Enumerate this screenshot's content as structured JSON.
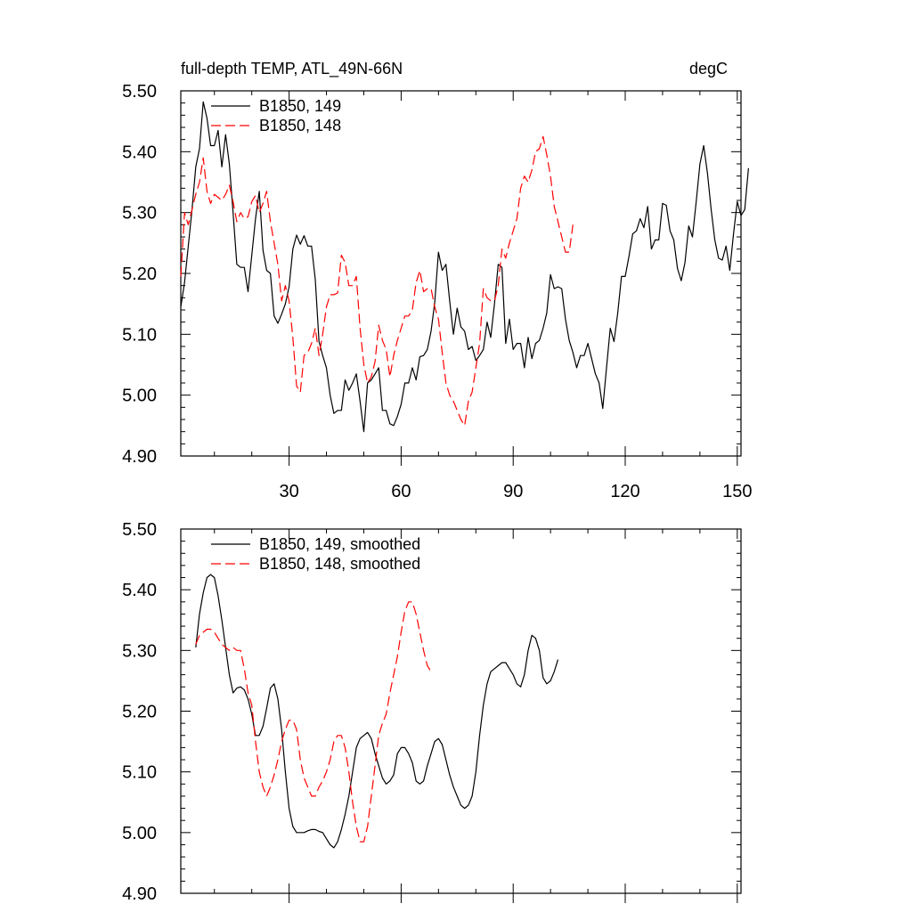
{
  "chart_data": [
    {
      "type": "line",
      "title": "full-depth TEMP, ATL_49N-66N",
      "units": "degC",
      "xlabel": "",
      "ylabel": "",
      "xlim": [
        1,
        151
      ],
      "ylim": [
        4.9,
        5.5
      ],
      "xticks": [
        "30",
        "60",
        "90",
        "120",
        "150"
      ],
      "yticks": [
        "5.50",
        "5.40",
        "5.30",
        "5.20",
        "5.10",
        "5.00",
        "4.90"
      ],
      "legend_position": "top-left",
      "series": [
        {
          "name": "B1850, 149",
          "color": "#000000",
          "dash": "solid",
          "x_start": 1,
          "values": [
            5.145,
            5.185,
            5.245,
            5.305,
            5.375,
            5.405,
            5.482,
            5.455,
            5.41,
            5.41,
            5.435,
            5.375,
            5.428,
            5.38,
            5.3,
            5.215,
            5.21,
            5.21,
            5.17,
            5.23,
            5.29,
            5.335,
            5.238,
            5.205,
            5.2,
            5.13,
            5.118,
            5.133,
            5.15,
            5.178,
            5.24,
            5.263,
            5.248,
            5.262,
            5.245,
            5.245,
            5.19,
            5.088,
            5.065,
            5.045,
            5.0,
            4.97,
            4.975,
            4.975,
            5.025,
            5.008,
            5.02,
            5.035,
            4.99,
            4.94,
            5.02,
            5.025,
            5.035,
            5.045,
            4.975,
            4.975,
            4.953,
            4.95,
            4.965,
            4.985,
            5.02,
            5.02,
            5.045,
            5.025,
            5.063,
            5.065,
            5.075,
            5.105,
            5.152,
            5.235,
            5.205,
            5.215,
            5.155,
            5.1,
            5.143,
            5.112,
            5.105,
            5.075,
            5.08,
            5.057,
            5.065,
            5.075,
            5.12,
            5.095,
            5.15,
            5.215,
            5.21,
            5.085,
            5.125,
            5.075,
            5.085,
            5.085,
            5.045,
            5.095,
            5.06,
            5.085,
            5.09,
            5.11,
            5.135,
            5.198,
            5.175,
            5.178,
            5.175,
            5.125,
            5.09,
            5.07,
            5.045,
            5.065,
            5.065,
            5.085,
            5.06,
            5.035,
            5.02,
            4.978,
            5.045,
            5.11,
            5.088,
            5.135,
            5.195,
            5.195,
            5.228,
            5.265,
            5.27,
            5.29,
            5.275,
            5.31,
            5.24,
            5.255,
            5.255,
            5.315,
            5.312,
            5.27,
            5.255,
            5.208,
            5.188,
            5.218,
            5.278,
            5.26,
            5.318,
            5.38,
            5.41,
            5.365,
            5.305,
            5.255,
            5.225,
            5.222,
            5.245,
            5.205,
            5.265,
            5.318,
            5.295,
            5.305,
            5.373
          ]
        },
        {
          "name": "B1850, 148",
          "color": "#ff0000",
          "dash": "dashed",
          "x_start": 1,
          "values": [
            5.195,
            5.3,
            5.28,
            5.305,
            5.33,
            5.35,
            5.39,
            5.335,
            5.315,
            5.33,
            5.325,
            5.32,
            5.33,
            5.345,
            5.318,
            5.285,
            5.3,
            5.29,
            5.293,
            5.318,
            5.328,
            5.3,
            5.315,
            5.335,
            5.285,
            5.25,
            5.215,
            5.155,
            5.18,
            5.155,
            5.095,
            5.015,
            5.005,
            5.065,
            5.07,
            5.085,
            5.11,
            5.065,
            5.1,
            5.145,
            5.165,
            5.165,
            5.168,
            5.23,
            5.218,
            5.18,
            5.18,
            5.195,
            5.11,
            5.05,
            5.02,
            5.03,
            5.055,
            5.115,
            5.09,
            5.075,
            5.03,
            5.065,
            5.09,
            5.11,
            5.13,
            5.13,
            5.14,
            5.185,
            5.205,
            5.17,
            5.175,
            5.175,
            5.145,
            5.125,
            5.07,
            5.02,
            5.0,
            4.99,
            4.975,
            4.96,
            4.95,
            4.99,
            5.005,
            5.045,
            5.085,
            5.175,
            5.16,
            5.155,
            5.155,
            5.18,
            5.24,
            5.225,
            5.25,
            5.27,
            5.29,
            5.34,
            5.36,
            5.35,
            5.37,
            5.4,
            5.405,
            5.425,
            5.395,
            5.36,
            5.31,
            5.285,
            5.26,
            5.235,
            5.235,
            5.28
          ]
        }
      ]
    },
    {
      "type": "line",
      "title": "",
      "xlabel": "",
      "ylabel": "",
      "xlim": [
        1,
        151
      ],
      "ylim": [
        4.9,
        5.5
      ],
      "yticks": [
        "5.50",
        "5.40",
        "5.30",
        "5.20",
        "5.10",
        "5.00",
        "4.90"
      ],
      "legend_position": "top-left",
      "series": [
        {
          "name": "B1850, 149, smoothed",
          "color": "#000000",
          "dash": "solid",
          "x_start": 5,
          "values": [
            5.305,
            5.36,
            5.395,
            5.42,
            5.425,
            5.42,
            5.39,
            5.35,
            5.305,
            5.26,
            5.23,
            5.238,
            5.24,
            5.235,
            5.22,
            5.195,
            5.16,
            5.16,
            5.175,
            5.205,
            5.238,
            5.245,
            5.22,
            5.17,
            5.1,
            5.04,
            5.01,
            5.0,
            5.0,
            5.0,
            5.003,
            5.005,
            5.005,
            5.002,
            5.0,
            4.99,
            4.98,
            4.975,
            4.985,
            5.005,
            5.03,
            5.06,
            5.1,
            5.14,
            5.155,
            5.16,
            5.165,
            5.155,
            5.13,
            5.11,
            5.09,
            5.08,
            5.085,
            5.095,
            5.13,
            5.14,
            5.14,
            5.13,
            5.115,
            5.085,
            5.08,
            5.085,
            5.11,
            5.13,
            5.15,
            5.155,
            5.145,
            5.12,
            5.095,
            5.075,
            5.06,
            5.045,
            5.04,
            5.045,
            5.06,
            5.1,
            5.16,
            5.21,
            5.245,
            5.265,
            5.27,
            5.275,
            5.28,
            5.28,
            5.27,
            5.26,
            5.245,
            5.24,
            5.26,
            5.3,
            5.325,
            5.32,
            5.3,
            5.255,
            5.245,
            5.25,
            5.265,
            5.285
          ]
        },
        {
          "name": "B1850, 148, smoothed",
          "color": "#ff0000",
          "dash": "dashed",
          "x_start": 5,
          "values": [
            5.31,
            5.325,
            5.33,
            5.335,
            5.335,
            5.33,
            5.32,
            5.31,
            5.305,
            5.3,
            5.305,
            5.3,
            5.3,
            5.27,
            5.23,
            5.21,
            5.15,
            5.1,
            5.075,
            5.06,
            5.075,
            5.095,
            5.12,
            5.15,
            5.17,
            5.185,
            5.185,
            5.17,
            5.12,
            5.09,
            5.075,
            5.06,
            5.06,
            5.075,
            5.085,
            5.1,
            5.12,
            5.15,
            5.16,
            5.16,
            5.14,
            5.1,
            5.05,
            5.01,
            4.985,
            4.985,
            5.01,
            5.06,
            5.11,
            5.16,
            5.18,
            5.195,
            5.23,
            5.26,
            5.29,
            5.33,
            5.365,
            5.38,
            5.38,
            5.36,
            5.33,
            5.3,
            5.275,
            5.265
          ]
        }
      ]
    }
  ]
}
